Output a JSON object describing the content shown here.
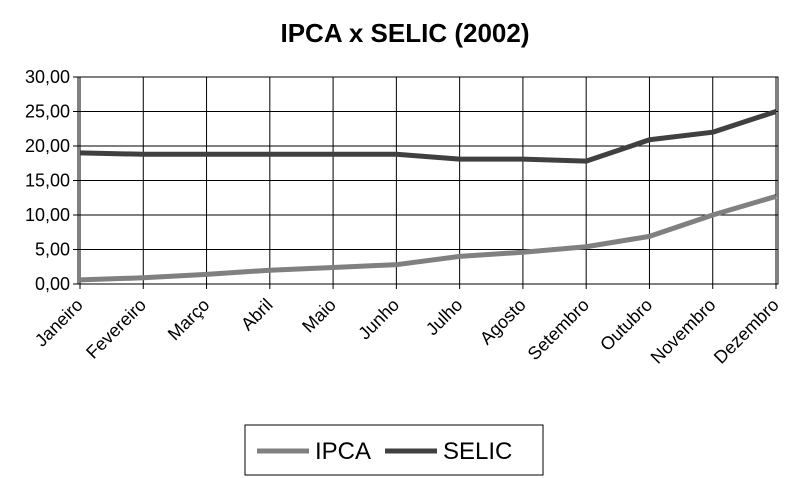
{
  "chart_data": {
    "type": "line",
    "title": "IPCA x SELIC (2002)",
    "categories": [
      "Janeiro",
      "Fevereiro",
      "Março",
      "Abril",
      "Maio",
      "Junho",
      "Julho",
      "Agosto",
      "Setembro",
      "Outubro",
      "Novembro",
      "Dezembro"
    ],
    "series": [
      {
        "name": "IPCA",
        "color": "#808080",
        "values": [
          0.6,
          0.9,
          1.4,
          2.0,
          2.4,
          2.8,
          4.0,
          4.6,
          5.4,
          6.9,
          10.0,
          12.7
        ]
      },
      {
        "name": "SELIC",
        "color": "#404040",
        "values": [
          19.0,
          18.8,
          18.8,
          18.8,
          18.8,
          18.8,
          18.1,
          18.1,
          17.8,
          20.9,
          22.0,
          25.0
        ]
      }
    ],
    "ylim": [
      0,
      30
    ],
    "yticks": [
      {
        "value": 0,
        "label": "0,00"
      },
      {
        "value": 5,
        "label": "5,00"
      },
      {
        "value": 10,
        "label": "10,00"
      },
      {
        "value": 15,
        "label": "15,00"
      },
      {
        "value": 20,
        "label": "20,00"
      },
      {
        "value": 25,
        "label": "25,00"
      },
      {
        "value": 30,
        "label": "30,00"
      }
    ],
    "grid": true,
    "legend": "bottom"
  }
}
